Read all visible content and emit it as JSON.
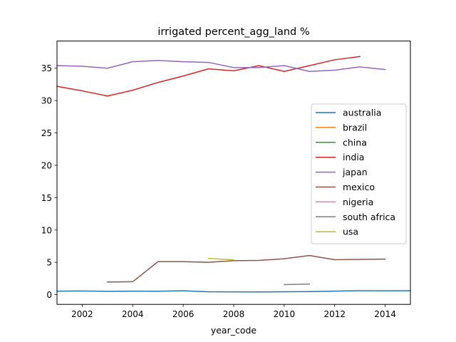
{
  "chart_data": {
    "type": "line",
    "title": "irrigated percent_agg_land %",
    "xlabel": "year_code",
    "ylabel": "",
    "xlim": [
      2001,
      2015
    ],
    "ylim": [
      -1.5,
      39.2
    ],
    "xticks": [
      2002,
      2004,
      2006,
      2008,
      2010,
      2012,
      2014
    ],
    "yticks": [
      0,
      5,
      10,
      15,
      20,
      25,
      30,
      35
    ],
    "grid": false,
    "legend_position": "center-right",
    "series": [
      {
        "name": "australia",
        "color": "#1f77b4",
        "x": [
          2001,
          2002,
          2003,
          2004,
          2005,
          2006,
          2007,
          2008,
          2009,
          2010,
          2011,
          2012,
          2013,
          2014,
          2015
        ],
        "y": [
          0.55,
          0.57,
          0.52,
          0.55,
          0.53,
          0.6,
          0.45,
          0.43,
          0.42,
          0.45,
          0.48,
          0.55,
          0.62,
          0.6,
          0.62
        ]
      },
      {
        "name": "brazil",
        "color": "#ff7f0e",
        "x": [],
        "y": []
      },
      {
        "name": "china",
        "color": "#2ca02c",
        "x": [],
        "y": []
      },
      {
        "name": "india",
        "color": "#d62728",
        "x": [
          2001,
          2002,
          2003,
          2004,
          2005,
          2006,
          2007,
          2008,
          2009,
          2010,
          2011,
          2012,
          2013
        ],
        "y": [
          32.2,
          31.5,
          30.7,
          31.6,
          32.8,
          33.8,
          34.9,
          34.6,
          35.4,
          34.5,
          35.4,
          36.3,
          36.8
        ]
      },
      {
        "name": "japan",
        "color": "#9467bd",
        "x": [
          2001,
          2002,
          2003,
          2004,
          2005,
          2006,
          2007,
          2008,
          2009,
          2010,
          2011,
          2012,
          2013,
          2014
        ],
        "y": [
          35.4,
          35.3,
          35.0,
          36.0,
          36.2,
          36.0,
          35.9,
          35.1,
          35.1,
          35.4,
          34.5,
          34.7,
          35.2,
          34.8
        ]
      },
      {
        "name": "mexico",
        "color": "#8c564b",
        "x": [
          2003,
          2004,
          2005,
          2006,
          2007,
          2008,
          2009,
          2010,
          2011,
          2012,
          2013,
          2014
        ],
        "y": [
          1.95,
          2.0,
          5.1,
          5.1,
          5.0,
          5.25,
          5.3,
          5.55,
          6.05,
          5.4,
          5.45,
          5.5
        ]
      },
      {
        "name": "nigeria",
        "color": "#e377c2",
        "x": [],
        "y": []
      },
      {
        "name": "south africa",
        "color": "#7f7f7f",
        "x": [
          2010,
          2011
        ],
        "y": [
          1.55,
          1.65
        ]
      },
      {
        "name": "usa",
        "color": "#bcbd22",
        "x": [
          2007,
          2008
        ],
        "y": [
          5.6,
          5.4
        ]
      }
    ]
  }
}
